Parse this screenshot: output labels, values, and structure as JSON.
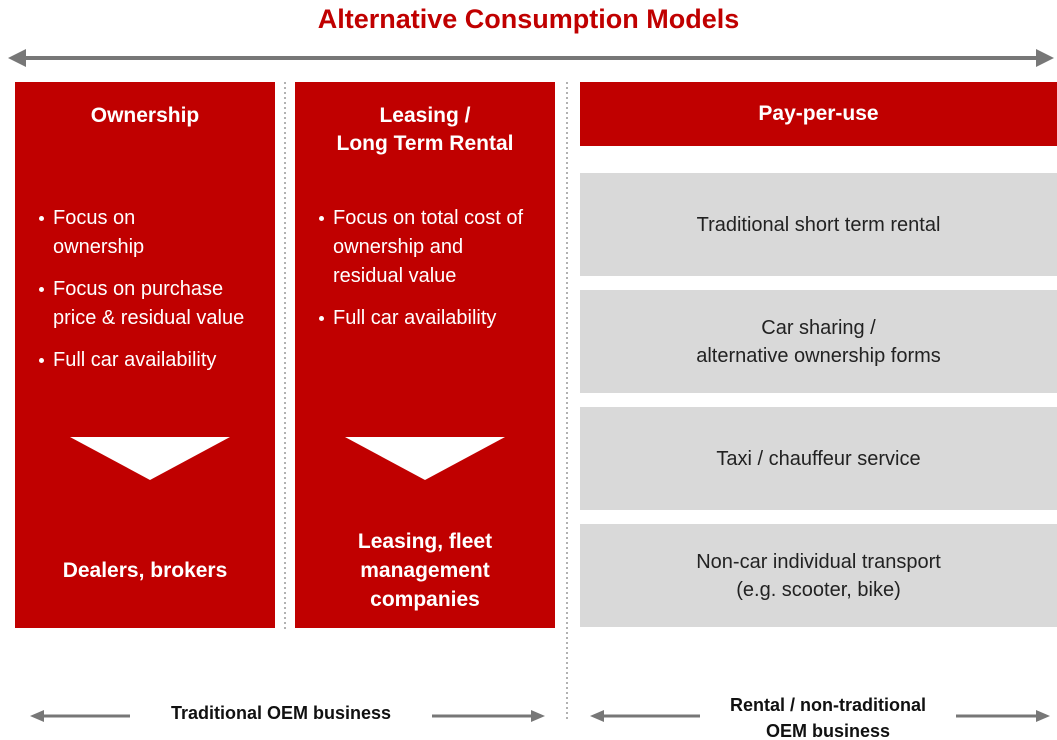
{
  "title": "Alternative Consumption Models",
  "columns": [
    {
      "header": [
        "Ownership"
      ],
      "bullets": [
        "Focus on ownership",
        "Focus on purchase price & residual value",
        "Full car availability"
      ],
      "footer": [
        "Dealers, brokers"
      ]
    },
    {
      "header": [
        "Leasing /",
        "Long Term Rental"
      ],
      "bullets": [
        "Focus on total cost of ownership and residual value",
        "Full car availability"
      ],
      "footer": [
        "Leasing, fleet",
        "management",
        "companies"
      ]
    }
  ],
  "pay_per_use": {
    "header": "Pay-per-use",
    "items": [
      [
        "Traditional short term rental"
      ],
      [
        "Car sharing /",
        "alternative ownership forms"
      ],
      [
        "Taxi / chauffeur service"
      ],
      [
        "Non-car individual transport",
        "(e.g. scooter, bike)"
      ]
    ]
  },
  "bottom": {
    "left": [
      "Traditional OEM business"
    ],
    "right": [
      "Rental / non-traditional",
      "OEM business"
    ]
  }
}
